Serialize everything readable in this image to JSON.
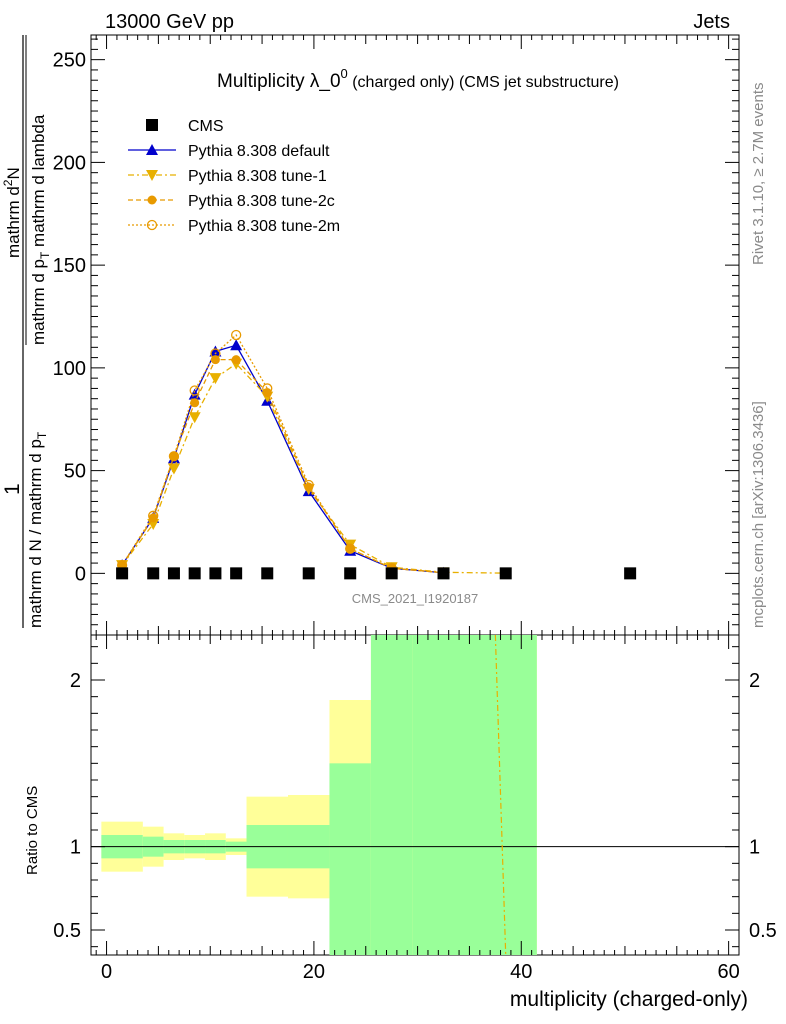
{
  "header": {
    "left": "13000 GeV pp",
    "right": "Jets"
  },
  "chart_data": {
    "type": "line",
    "title": "Multiplicity λ_0",
    "title_sup": "0",
    "title_suffix": " (charged only) (CMS jet substructure)",
    "xlabel": "multiplicity (charged-only)",
    "ylabel_numer": "1",
    "ylabel_denom": "mathrm d N / mathrm d p",
    "ylabel_main_denom": "mathrm d p",
    "ylabel_main_denom_sub": "T",
    "ylabel_main_numer": "mathrm d",
    "ylabel_main_numer_sup": "2",
    "ylabel_main_numer_tail": "N",
    "ylabel_mathrm_lambda": "mathrm d p",
    "ylabel_lambda_tail": " mathrm d lambda",
    "ratio_ylabel": "Ratio to CMS",
    "analysis_id": "CMS_2021_I1920187",
    "side_top": "Rivet 3.1.10, ≥ 2.7M events",
    "side_bottom": "mcplots.cern.ch [arXiv:1306.3436]",
    "xlim": [
      -1.5,
      61
    ],
    "ylim": [
      -30,
      262
    ],
    "ratio_ylim": [
      0.35,
      2.27
    ],
    "x_ticks": [
      0,
      20,
      40,
      60
    ],
    "y_ticks": [
      0,
      50,
      100,
      150,
      200,
      250
    ],
    "ratio_ticks": [
      0.5,
      1,
      2
    ],
    "legend_placement": "top-left",
    "series": [
      {
        "name": "CMS",
        "color": "#000000",
        "marker": "square",
        "x": [
          1.5,
          4.5,
          6.5,
          8.5,
          10.5,
          12.5,
          15.5,
          19.5,
          23.5,
          27.5,
          32.5,
          38.5,
          50.5
        ],
        "values": [
          0,
          0,
          0,
          0,
          0,
          0,
          0,
          0,
          0,
          0,
          0,
          0,
          0
        ]
      },
      {
        "name": "Pythia 8.308 default",
        "color": "#0000cc",
        "marker": "triangle-up",
        "dash": "",
        "x": [
          1.5,
          4.5,
          6.5,
          8.5,
          10.5,
          12.5,
          15.5,
          19.5,
          23.5,
          27.5,
          32.5
        ],
        "values": [
          4,
          27,
          56,
          87,
          108,
          111,
          84,
          40,
          11,
          2.5,
          0.3
        ]
      },
      {
        "name": "Pythia 8.308 tune-1",
        "color": "#e8b000",
        "marker": "triangle-down",
        "dash": "6,3,2,3",
        "x": [
          1.5,
          4.5,
          6.5,
          8.5,
          10.5,
          12.5,
          15.5,
          19.5,
          23.5,
          27.5,
          32.5,
          38.5
        ],
        "values": [
          4,
          24,
          51,
          76,
          95,
          102,
          86,
          41,
          14,
          3,
          0.5,
          0.1
        ]
      },
      {
        "name": "Pythia 8.308 tune-2c",
        "color": "#e89a00",
        "marker": "circle",
        "dash": "5,3",
        "x": [
          1.5,
          4.5,
          6.5,
          8.5,
          10.5,
          12.5,
          15.5,
          19.5,
          23.5,
          27.5,
          32.5
        ],
        "values": [
          4,
          27,
          57,
          83,
          104,
          104,
          88,
          42,
          12,
          2.5,
          0.3
        ]
      },
      {
        "name": "Pythia 8.308 tune-2m",
        "color": "#e89a00",
        "marker": "open-circle",
        "dash": "2,2",
        "x": [
          1.5,
          4.5,
          6.5,
          8.5,
          10.5,
          12.5,
          15.5,
          19.5,
          23.5,
          27.5,
          32.5
        ],
        "values": [
          4,
          28,
          57,
          89,
          107,
          116,
          90,
          43,
          12,
          2.5,
          0.3
        ]
      }
    ],
    "ratio_bands": {
      "edges": [
        -0.5,
        3.5,
        5.5,
        7.5,
        9.5,
        11.5,
        13.5,
        17.5,
        21.5,
        25.5,
        29.5,
        41.5
      ],
      "green": [
        [
          0.93,
          1.07
        ],
        [
          0.94,
          1.06
        ],
        [
          0.96,
          1.04
        ],
        [
          0.96,
          1.04
        ],
        [
          0.96,
          1.04
        ],
        [
          0.97,
          1.03
        ],
        [
          0.87,
          1.13
        ],
        [
          0.87,
          1.13
        ],
        [
          0.31,
          1.5
        ],
        [
          0.3,
          3
        ],
        [
          0.3,
          3
        ]
      ],
      "yellow": [
        [
          0.85,
          1.15
        ],
        [
          0.88,
          1.12
        ],
        [
          0.92,
          1.08
        ],
        [
          0.93,
          1.07
        ],
        [
          0.92,
          1.08
        ],
        [
          0.95,
          1.05
        ],
        [
          0.7,
          1.3
        ],
        [
          0.69,
          1.31
        ],
        [
          0.3,
          1.88
        ],
        [
          0.3,
          3
        ],
        [
          0.3,
          3
        ]
      ]
    },
    "ratio_line": {
      "color": "#e8b000",
      "dash": "6,3,2,3",
      "points": [
        [
          37.5,
          2.27
        ],
        [
          38.5,
          0.35
        ]
      ]
    }
  }
}
